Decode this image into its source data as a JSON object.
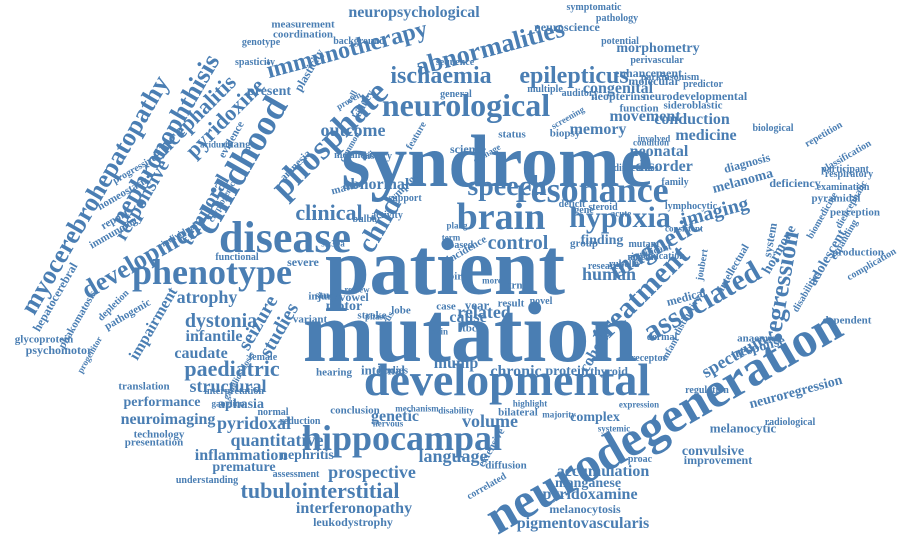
{
  "color": "#4a7eb3",
  "words": [
    {
      "text": "patient",
      "angle": 0
    },
    {
      "text": "mutation",
      "angle": 0
    },
    {
      "text": "syndrome",
      "angle": 0
    },
    {
      "text": "developmental",
      "angle": 0
    },
    {
      "text": "neurodegeneration",
      "angle": -30
    },
    {
      "text": "hippocampal",
      "angle": 0
    },
    {
      "text": "disease",
      "angle": 0
    },
    {
      "text": "phenotype",
      "angle": 0
    },
    {
      "text": "brain",
      "angle": 0
    },
    {
      "text": "resonance",
      "angle": 0
    },
    {
      "text": "neurological",
      "angle": 0
    },
    {
      "text": "associated",
      "angle": -30
    },
    {
      "text": "childhood",
      "angle": -60
    },
    {
      "text": "phosphate",
      "angle": -45
    },
    {
      "text": "myocerebrohepatopathy",
      "angle": -60
    },
    {
      "text": "nephronophthisis",
      "angle": -60
    },
    {
      "text": "tubulointerstitial",
      "angle": 0
    },
    {
      "text": "hypoxia",
      "angle": 0
    },
    {
      "text": "speech",
      "angle": 0
    },
    {
      "text": "magnetic",
      "angle": -30
    },
    {
      "text": "treatment",
      "angle": -45
    },
    {
      "text": "regression",
      "angle": -80
    },
    {
      "text": "abnormalities",
      "angle": -15
    },
    {
      "text": "ischaemia",
      "angle": 0
    },
    {
      "text": "epilepticus",
      "angle": 0
    },
    {
      "text": "immunotherapy",
      "angle": -15
    },
    {
      "text": "clinical",
      "angle": 0
    },
    {
      "text": "child",
      "angle": -60
    },
    {
      "text": "development",
      "angle": -30
    },
    {
      "text": "paediatric",
      "angle": 0
    },
    {
      "text": "dystonia",
      "angle": 0
    },
    {
      "text": "atrophy",
      "angle": 0
    },
    {
      "text": "seizure",
      "angle": -60
    },
    {
      "text": "studies",
      "angle": -60
    },
    {
      "text": "control",
      "angle": 0
    },
    {
      "text": "imaging",
      "angle": -15
    },
    {
      "text": "spectrum",
      "angle": -30
    },
    {
      "text": "language",
      "angle": 0
    },
    {
      "text": "prospective",
      "angle": 0
    },
    {
      "text": "pyridoxal",
      "angle": 0
    },
    {
      "text": "quantitative",
      "angle": 0
    },
    {
      "text": "volume",
      "angle": 0
    },
    {
      "text": "accumulation",
      "angle": 0
    },
    {
      "text": "pyridoxamine",
      "angle": 0
    },
    {
      "text": "interferonopathy",
      "angle": 0
    },
    {
      "text": "pigmentovascularis",
      "angle": 0
    },
    {
      "text": "leukodystrophy",
      "angle": 0
    },
    {
      "text": "melanocytosis",
      "angle": 0
    },
    {
      "text": "manganese",
      "angle": 0
    },
    {
      "text": "inflammation",
      "angle": 0
    },
    {
      "text": "nephritis",
      "angle": 0
    },
    {
      "text": "premature",
      "angle": 0
    },
    {
      "text": "neuroimaging",
      "angle": 0
    },
    {
      "text": "performance",
      "angle": 0
    },
    {
      "text": "aphasia",
      "angle": 0
    },
    {
      "text": "structural",
      "angle": 0
    },
    {
      "text": "caudate",
      "angle": 0
    },
    {
      "text": "infantile",
      "angle": 0
    },
    {
      "text": "impairment",
      "angle": -60
    },
    {
      "text": "glycoprotein",
      "angle": 0
    },
    {
      "text": "psychomotor",
      "angle": 0
    },
    {
      "text": "hepatocerebral",
      "angle": -60
    },
    {
      "text": "phakomatosis",
      "angle": -60
    },
    {
      "text": "temporal",
      "angle": -60
    },
    {
      "text": "responsive",
      "angle": -60
    },
    {
      "text": "encephalitis",
      "angle": -45
    },
    {
      "text": "pyridoxine",
      "angle": -45
    },
    {
      "text": "outcome",
      "angle": 0
    },
    {
      "text": "memory",
      "angle": 0
    },
    {
      "text": "movement",
      "angle": 0
    },
    {
      "text": "conduction",
      "angle": 0
    },
    {
      "text": "medicine",
      "angle": 0
    },
    {
      "text": "neonatal",
      "angle": 0
    },
    {
      "text": "disorder",
      "angle": 0
    },
    {
      "text": "human",
      "angle": 0
    },
    {
      "text": "cohort",
      "angle": -60
    },
    {
      "text": "related",
      "angle": 0
    },
    {
      "text": "cause",
      "angle": 0
    },
    {
      "text": "genetic",
      "angle": 0
    },
    {
      "text": "chronic",
      "angle": 0
    },
    {
      "text": "protein",
      "angle": 0
    },
    {
      "text": "complex",
      "angle": 0
    },
    {
      "text": "convulsive",
      "angle": 0
    },
    {
      "text": "improvement",
      "angle": 0
    },
    {
      "text": "melanocytic",
      "angle": 0
    },
    {
      "text": "neuroregression",
      "angle": -15
    },
    {
      "text": "mump",
      "angle": 0
    },
    {
      "text": "internal",
      "angle": 0
    },
    {
      "text": "motor",
      "angle": 0
    },
    {
      "text": "stroke",
      "angle": 0
    },
    {
      "text": "congenital",
      "angle": 0
    },
    {
      "text": "molecular",
      "angle": 0
    },
    {
      "text": "neuropsychological",
      "angle": 0
    },
    {
      "text": "measurement",
      "angle": 0
    },
    {
      "text": "coordination",
      "angle": 0
    },
    {
      "text": "morphometry",
      "angle": 0
    },
    {
      "text": "enhancement",
      "angle": 0
    },
    {
      "text": "neuroscience",
      "angle": 0
    },
    {
      "text": "symptomatic",
      "angle": 0
    },
    {
      "text": "neurodevelopmental",
      "angle": 0
    },
    {
      "text": "sideroblastic",
      "angle": 0
    },
    {
      "text": "neopterins",
      "angle": 0
    },
    {
      "text": "function",
      "angle": 0
    },
    {
      "text": "abnormal",
      "angle": 0
    },
    {
      "text": "science",
      "angle": 0
    },
    {
      "text": "status",
      "angle": 0
    },
    {
      "text": "biopsy",
      "angle": 0
    },
    {
      "text": "finding",
      "angle": 0
    },
    {
      "text": "group",
      "angle": 0
    },
    {
      "text": "year",
      "angle": 0
    },
    {
      "text": "case",
      "angle": 0
    },
    {
      "text": "tbcid",
      "angle": 0
    },
    {
      "text": "lobe",
      "angle": 0
    },
    {
      "text": "injury",
      "angle": 0
    },
    {
      "text": "study",
      "angle": 0
    },
    {
      "text": "severe",
      "angle": 0
    },
    {
      "text": "variant",
      "angle": 0
    },
    {
      "text": "thyroid",
      "angle": 0
    },
    {
      "text": "response",
      "angle": -15
    },
    {
      "text": "anaemia",
      "angle": 0
    },
    {
      "text": "radiological",
      "angle": 0
    },
    {
      "text": "dependent",
      "angle": 0
    },
    {
      "text": "production",
      "angle": 0
    },
    {
      "text": "perception",
      "angle": 0
    },
    {
      "text": "pyramidal",
      "angle": 0
    },
    {
      "text": "deficiency",
      "angle": 0
    },
    {
      "text": "melanoma",
      "angle": -15
    },
    {
      "text": "diagnosis",
      "angle": -15
    },
    {
      "text": "hormone",
      "angle": -60
    },
    {
      "text": "adolescent",
      "angle": -60
    },
    {
      "text": "medical",
      "angle": -15
    },
    {
      "text": "system",
      "angle": -80
    },
    {
      "text": "translation",
      "angle": 0
    },
    {
      "text": "technology",
      "angle": 0
    },
    {
      "text": "presentation",
      "angle": 0
    },
    {
      "text": "understanding",
      "angle": 0
    },
    {
      "text": "assessment",
      "angle": 0
    },
    {
      "text": "diffusion",
      "angle": 0
    },
    {
      "text": "extensive",
      "angle": -60
    },
    {
      "text": "hearing",
      "angle": 0
    },
    {
      "text": "bodies",
      "angle": 0
    },
    {
      "text": "rubella",
      "angle": 0
    },
    {
      "text": "deficit",
      "angle": 0
    },
    {
      "text": "steroid",
      "angle": 0
    },
    {
      "text": "gene",
      "angle": 0
    },
    {
      "text": "kidney",
      "angle": -60
    },
    {
      "text": "spasticity",
      "angle": 0
    },
    {
      "text": "genotype",
      "angle": 0
    },
    {
      "text": "background",
      "angle": 0
    },
    {
      "text": "sequence",
      "angle": 0
    },
    {
      "text": "general",
      "angle": 0
    },
    {
      "text": "multiple",
      "angle": 0
    },
    {
      "text": "auditory",
      "angle": 0
    },
    {
      "text": "potential",
      "angle": 0
    },
    {
      "text": "perivascular",
      "angle": 0
    },
    {
      "text": "pathology",
      "angle": 0
    },
    {
      "text": "parkinsonism",
      "angle": 0
    },
    {
      "text": "predictor",
      "angle": 0
    },
    {
      "text": "biological",
      "angle": 0
    },
    {
      "text": "repetition",
      "angle": -30
    },
    {
      "text": "classification",
      "angle": -30
    },
    {
      "text": "participant",
      "angle": 0
    },
    {
      "text": "respiratory",
      "angle": 0
    },
    {
      "text": "examination",
      "angle": 0
    },
    {
      "text": "complication",
      "angle": -30
    },
    {
      "text": "biomedicine",
      "angle": -60
    },
    {
      "text": "disabilities",
      "angle": -60
    },
    {
      "text": "diencephalic",
      "angle": -60
    },
    {
      "text": "expanding",
      "angle": -60
    },
    {
      "text": "intellectual",
      "angle": -60
    },
    {
      "text": "joubert",
      "angle": -80
    },
    {
      "text": "distinctive",
      "angle": -60
    },
    {
      "text": "dermal",
      "angle": 0
    },
    {
      "text": "infant",
      "angle": -60
    },
    {
      "text": "receptor",
      "angle": 0
    },
    {
      "text": "significant",
      "angle": -15
    },
    {
      "text": "mutant",
      "angle": 0
    },
    {
      "text": "present",
      "angle": 0
    },
    {
      "text": "plasticity",
      "angle": -60
    },
    {
      "text": "evidence",
      "angle": -60
    },
    {
      "text": "amnesia",
      "angle": -45
    },
    {
      "text": "change",
      "angle": 0
    },
    {
      "text": "symptom",
      "angle": -45
    },
    {
      "text": "matter",
      "angle": -15
    },
    {
      "text": "history",
      "angle": 0
    },
    {
      "text": "report",
      "angle": -30
    },
    {
      "text": "immunology",
      "angle": -30
    },
    {
      "text": "homeostasis",
      "angle": -30
    },
    {
      "text": "progressive",
      "angle": -30
    },
    {
      "text": "pathogenic",
      "angle": -30
    },
    {
      "text": "depletion",
      "angle": -45
    },
    {
      "text": "progenitor",
      "angle": -60
    },
    {
      "text": "interpretation",
      "angle": 0
    },
    {
      "text": "female",
      "angle": 0
    },
    {
      "text": "functional",
      "angle": 0
    },
    {
      "text": "normal",
      "angle": 0
    },
    {
      "text": "reduction",
      "angle": 0
    },
    {
      "text": "conclusion",
      "angle": 0
    },
    {
      "text": "bilateral",
      "angle": 0
    },
    {
      "text": "research",
      "angle": 0
    },
    {
      "text": "result",
      "angle": 0
    },
    {
      "text": "novel",
      "angle": 0
    },
    {
      "text": "proac",
      "angle": 0
    },
    {
      "text": "lymphocytic",
      "angle": 0
    },
    {
      "text": "incidence",
      "angle": -30
    },
    {
      "text": "birth",
      "angle": 0
    },
    {
      "text": "trnt",
      "angle": 0
    },
    {
      "text": "pla2g",
      "angle": 0
    },
    {
      "text": "term",
      "angle": 0
    },
    {
      "text": "more",
      "angle": 0
    },
    {
      "text": "vowel",
      "angle": 0
    },
    {
      "text": "virus",
      "angle": -60
    },
    {
      "text": "slc39a",
      "angle": 0
    },
    {
      "text": "family",
      "angle": 0
    },
    {
      "text": "activity",
      "angle": 0
    },
    {
      "text": "bulbar",
      "angle": 0
    },
    {
      "text": "based",
      "angle": 0
    },
    {
      "text": "cell",
      "angle": -60
    },
    {
      "text": "melanosis",
      "angle": 0
    },
    {
      "text": "common",
      "angle": -60
    },
    {
      "text": "proven",
      "angle": -30
    },
    {
      "text": "aciduria",
      "angle": 0
    },
    {
      "text": "individual",
      "angle": -30
    },
    {
      "text": "cryptogenic",
      "angle": -60
    },
    {
      "text": "gangliosidosis",
      "angle": -60
    },
    {
      "text": "ganglion",
      "angle": 0
    },
    {
      "text": "nervous",
      "angle": 0
    },
    {
      "text": "mechanism",
      "angle": 0
    },
    {
      "text": "disability",
      "angle": 0
    },
    {
      "text": "majority",
      "angle": 0
    },
    {
      "text": "highlight",
      "angle": 0
    },
    {
      "text": "systemic",
      "angle": 0
    },
    {
      "text": "expression",
      "angle": 0
    },
    {
      "text": "regulation",
      "angle": 0
    },
    {
      "text": "correlated",
      "angle": -30
    },
    {
      "text": "difficulties",
      "angle": 0
    },
    {
      "text": "involved",
      "angle": 0
    },
    {
      "text": "condition",
      "angle": 0
    },
    {
      "text": "education",
      "angle": 0
    },
    {
      "text": "myelin",
      "angle": 0
    },
    {
      "text": "support",
      "angle": 0
    },
    {
      "text": "feature",
      "angle": -60
    },
    {
      "text": "damage",
      "angle": -30
    },
    {
      "text": "review",
      "angle": 0
    },
    {
      "text": "phase",
      "angle": 0
    },
    {
      "text": "acute",
      "angle": 0
    },
    {
      "text": "screening",
      "angle": -30
    },
    {
      "text": "consistent",
      "angle": 0
    },
    {
      "text": "skin",
      "angle": 0
    }
  ]
}
